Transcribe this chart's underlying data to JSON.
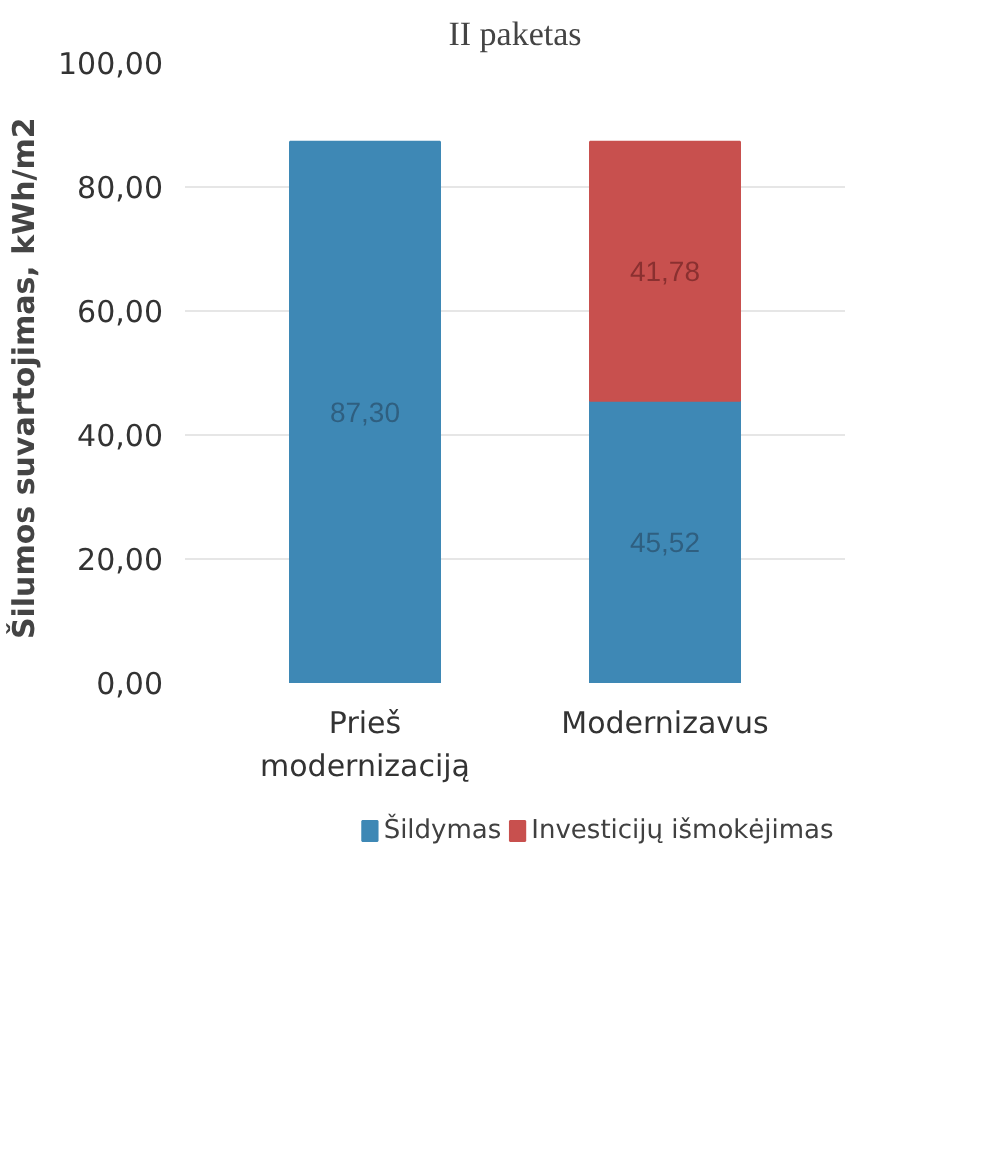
{
  "chart_data": {
    "type": "bar",
    "title": "II paketas",
    "ylabel": "Šilumos suvartojimas,  kWh/m2",
    "categories": [
      "Prieš modernizaciją",
      "Modernizavus"
    ],
    "stacked": true,
    "series": [
      {
        "name": "Šildymas",
        "color": "#3e88b5",
        "values": [
          87.3,
          45.52
        ],
        "value_labels": [
          "87,30",
          "45,52"
        ]
      },
      {
        "name": "Investicijų išmokėjimas",
        "color": "#c8504e",
        "values": [
          null,
          41.78
        ],
        "value_labels": [
          null,
          "41,78"
        ]
      }
    ],
    "ylim": [
      0,
      100
    ],
    "yticks": [
      {
        "value": 0,
        "label": "0,00"
      },
      {
        "value": 20,
        "label": "20,00"
      },
      {
        "value": 40,
        "label": "40,00"
      },
      {
        "value": 60,
        "label": "60,00"
      },
      {
        "value": 80,
        "label": "80,00"
      },
      {
        "value": 100,
        "label": "100,00"
      }
    ],
    "grid": "y",
    "legend": "bottom"
  }
}
